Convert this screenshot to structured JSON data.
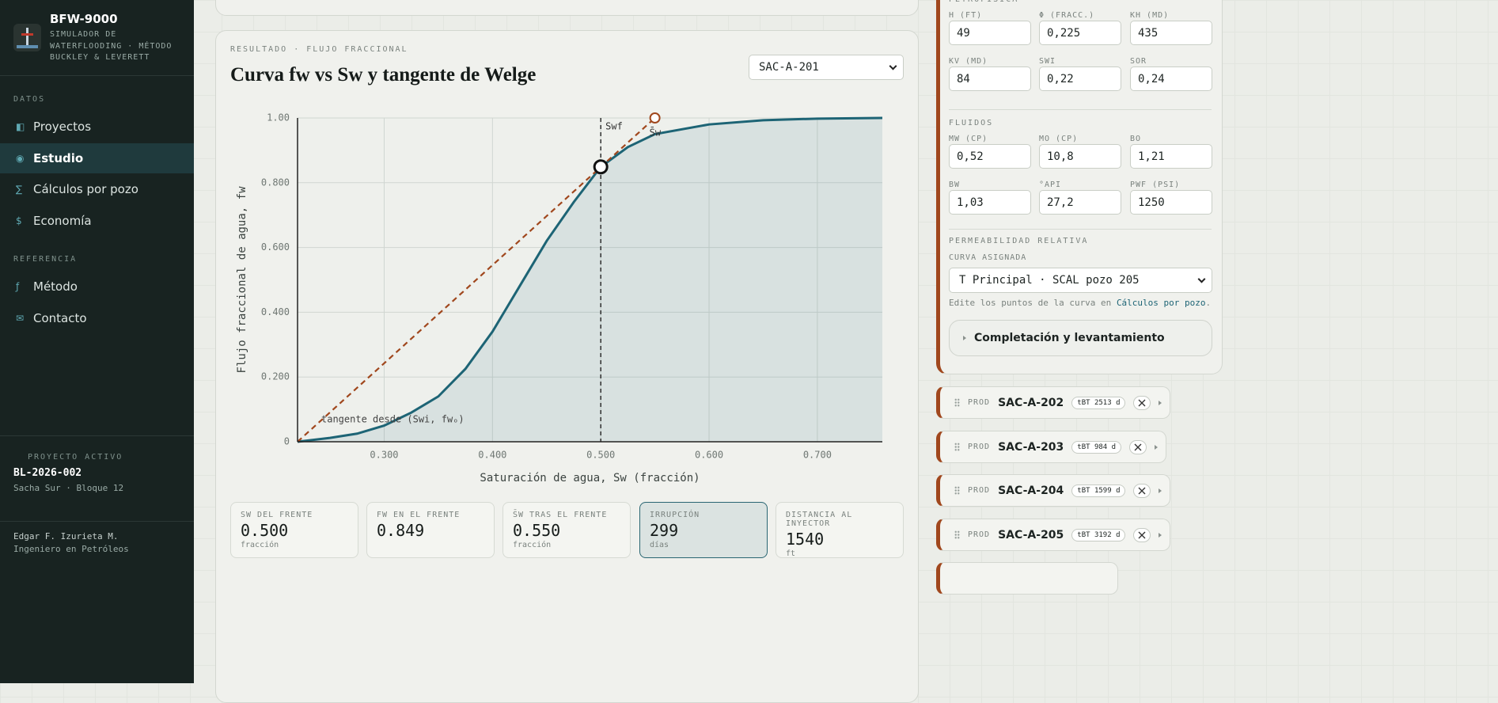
{
  "sidebar": {
    "brand": "BFW-9000",
    "subtitle": "SIMULADOR DE WATERFLOODING · MÉTODO BUCKLEY & LEVERETT",
    "sections": [
      {
        "title": "DATOS",
        "items": [
          {
            "icon": "◧",
            "label": "Proyectos"
          },
          {
            "icon": "◉",
            "label": "Estudio",
            "active": true
          },
          {
            "icon": "∑",
            "label": "Cálculos por pozo"
          },
          {
            "icon": "$",
            "label": "Economía"
          }
        ]
      },
      {
        "title": "REFERENCIA",
        "items": [
          {
            "icon": "ƒ",
            "label": "Método"
          },
          {
            "icon": "✉",
            "label": "Contacto"
          }
        ]
      }
    ],
    "project": {
      "label": "PROYECTO ACTIVO",
      "code": "BL-2026-002",
      "name": "Sacha Sur · Bloque 12"
    },
    "author": {
      "name": "Edgar F. Izurieta M.",
      "role": "Ingeniero en Petróleos"
    }
  },
  "result": {
    "eyebrow": "RESULTADO · FLUJO FRACCIONAL",
    "title": "Curva fw vs Sw y tangente de Welge",
    "well_select": "SAC-A-201"
  },
  "chart_data": {
    "type": "line",
    "x_label": "Saturación de agua, Sw (fracción)",
    "y_label": "Flujo fraccional de agua, fw",
    "x": [
      0.22,
      0.25,
      0.275,
      0.3,
      0.325,
      0.35,
      0.375,
      0.4,
      0.425,
      0.45,
      0.475,
      0.5,
      0.525,
      0.55,
      0.6,
      0.65,
      0.7,
      0.76
    ],
    "series": [
      {
        "color": "#1d6475",
        "values": [
          0,
          0.012,
          0.025,
          0.05,
          0.09,
          0.14,
          0.225,
          0.34,
          0.48,
          0.62,
          0.74,
          0.849,
          0.91,
          0.95,
          0.98,
          0.993,
          0.998,
          1.0
        ],
        "fill": true
      },
      {
        "color": "#a0471d",
        "x": [
          0.22,
          0.55
        ],
        "values": [
          0,
          1
        ],
        "dash": true
      }
    ],
    "front": {
      "x": 0.5,
      "y": 0.849,
      "label": "Swf"
    },
    "average": {
      "x": 0.55,
      "y": 1,
      "label": "S̄w"
    },
    "annotation": "tangente desde (Swi, fwₒ)",
    "xlim": [
      0.22,
      0.76
    ],
    "ylim": [
      0,
      1
    ],
    "xticks": [
      {
        "value": 0.3,
        "label": "0.300"
      },
      {
        "value": 0.4,
        "label": "0.400"
      },
      {
        "value": 0.5,
        "label": "0.500"
      },
      {
        "value": 0.6,
        "label": "0.600"
      },
      {
        "value": 0.7,
        "label": "0.700"
      }
    ],
    "yticks": [
      0,
      {
        "value": 0.2,
        "label": "0.200"
      },
      {
        "value": 0.4,
        "label": "0.400"
      },
      {
        "value": 0.6,
        "label": "0.600"
      },
      {
        "value": 0.8,
        "label": "0.800"
      },
      {
        "value": 1,
        "label": "1.00"
      }
    ],
    "grid": true
  },
  "metrics": [
    {
      "label": "SW DEL FRENTE",
      "value": "0.500",
      "unit": "fracción"
    },
    {
      "label": "FW EN EL FRENTE",
      "value": "0.849"
    },
    {
      "label": "S̄W TRAS EL FRENTE",
      "value": "0.550",
      "unit": "fracción"
    },
    {
      "label": "IRRUPCIÓN",
      "value": 299,
      "unit": "días",
      "highlight": true
    },
    {
      "label": "DISTANCIA AL INYECTOR",
      "value": 1540,
      "unit": "ft"
    }
  ],
  "parameters": {
    "sections": [
      {
        "title": "PETROFÍSICA",
        "fields": [
          {
            "label": "H (FT)",
            "value": "49"
          },
          {
            "label": "Φ (FRACC.)",
            "value": "0,225"
          },
          {
            "label": "KH (MD)",
            "value": "435"
          },
          {
            "label": "KV (MD)",
            "value": "84"
          },
          {
            "label": "SWI",
            "value": "0,22"
          },
          {
            "label": "SOR",
            "value": "0,24"
          }
        ]
      },
      {
        "title": "FLUIDOS",
        "fields": [
          {
            "label": "MW (CP)",
            "value": "0,52"
          },
          {
            "label": "MO (CP)",
            "value": "10,8"
          },
          {
            "label": "BO",
            "value": "1,21"
          },
          {
            "label": "BW",
            "value": "1,03"
          },
          {
            "label": "°API",
            "value": "27,2"
          },
          {
            "label": "PWF (PSI)",
            "value": "1250"
          }
        ]
      }
    ],
    "relperm": {
      "title": "PERMEABILIDAD RELATIVA",
      "label": "CURVA ASIGNADA",
      "curve": "T Principal · SCAL pozo 205",
      "hint": "Edite los puntos de la curva en",
      "link": "Cálculos por pozo",
      "hint_end": "."
    },
    "collapsible": "Completación y levantamiento"
  },
  "wells": [
    {
      "type": "PROD",
      "name": "SAC-A-202",
      "tbt": "tBT 2513 d"
    },
    {
      "type": "PROD",
      "name": "SAC-A-203",
      "tbt": "tBT 984 d"
    },
    {
      "type": "PROD",
      "name": "SAC-A-204",
      "tbt": "tBT 1599 d"
    },
    {
      "type": "PROD",
      "name": "SAC-A-205",
      "tbt": "tBT 3192 d"
    }
  ]
}
